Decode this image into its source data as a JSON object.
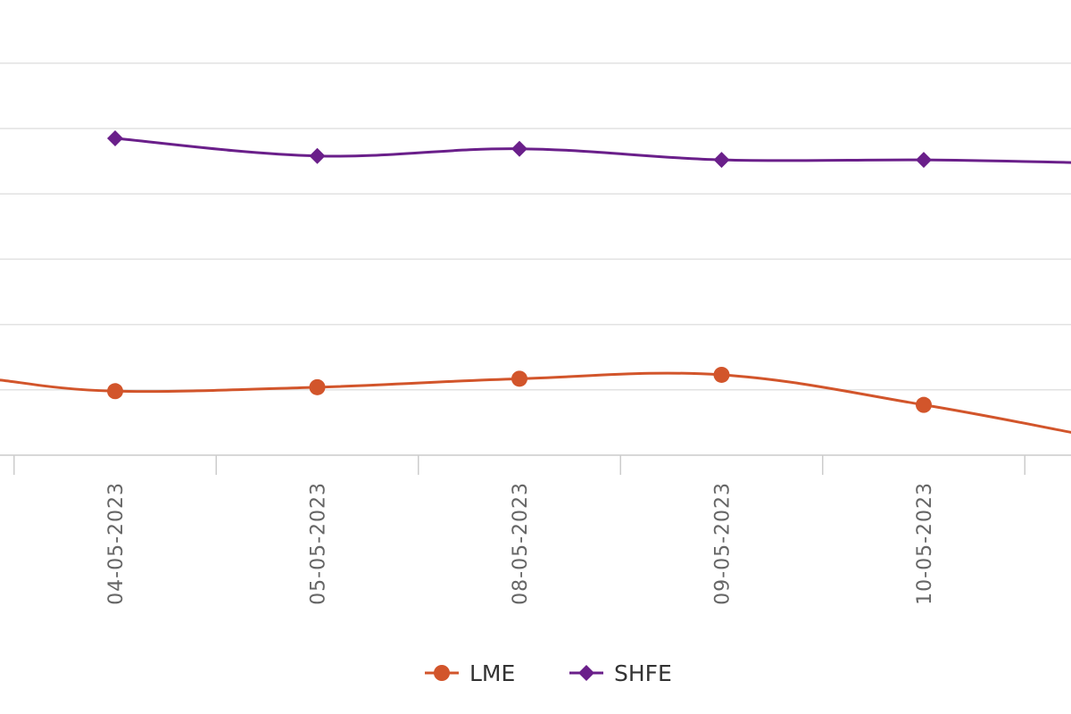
{
  "chart_data": {
    "type": "line",
    "categories": [
      "04-05-2023",
      "05-05-2023",
      "08-05-2023",
      "09-05-2023",
      "10-05-2023"
    ],
    "ylim": [
      0,
      6
    ],
    "y_ticks": [
      1,
      2,
      3,
      4,
      5,
      6
    ],
    "grid": true,
    "legend_position": "bottom",
    "series": [
      {
        "name": "LME",
        "values": [
          0.98,
          1.04,
          1.17,
          1.23,
          0.77
        ],
        "lead_in": 1.15,
        "trail_out": 0.35,
        "color": "#d2552b",
        "marker": "circle"
      },
      {
        "name": "SHFE",
        "values": [
          4.85,
          4.58,
          4.69,
          4.52,
          4.52
        ],
        "trail_out": 4.48,
        "color": "#6a1f8a",
        "marker": "diamond"
      }
    ]
  }
}
